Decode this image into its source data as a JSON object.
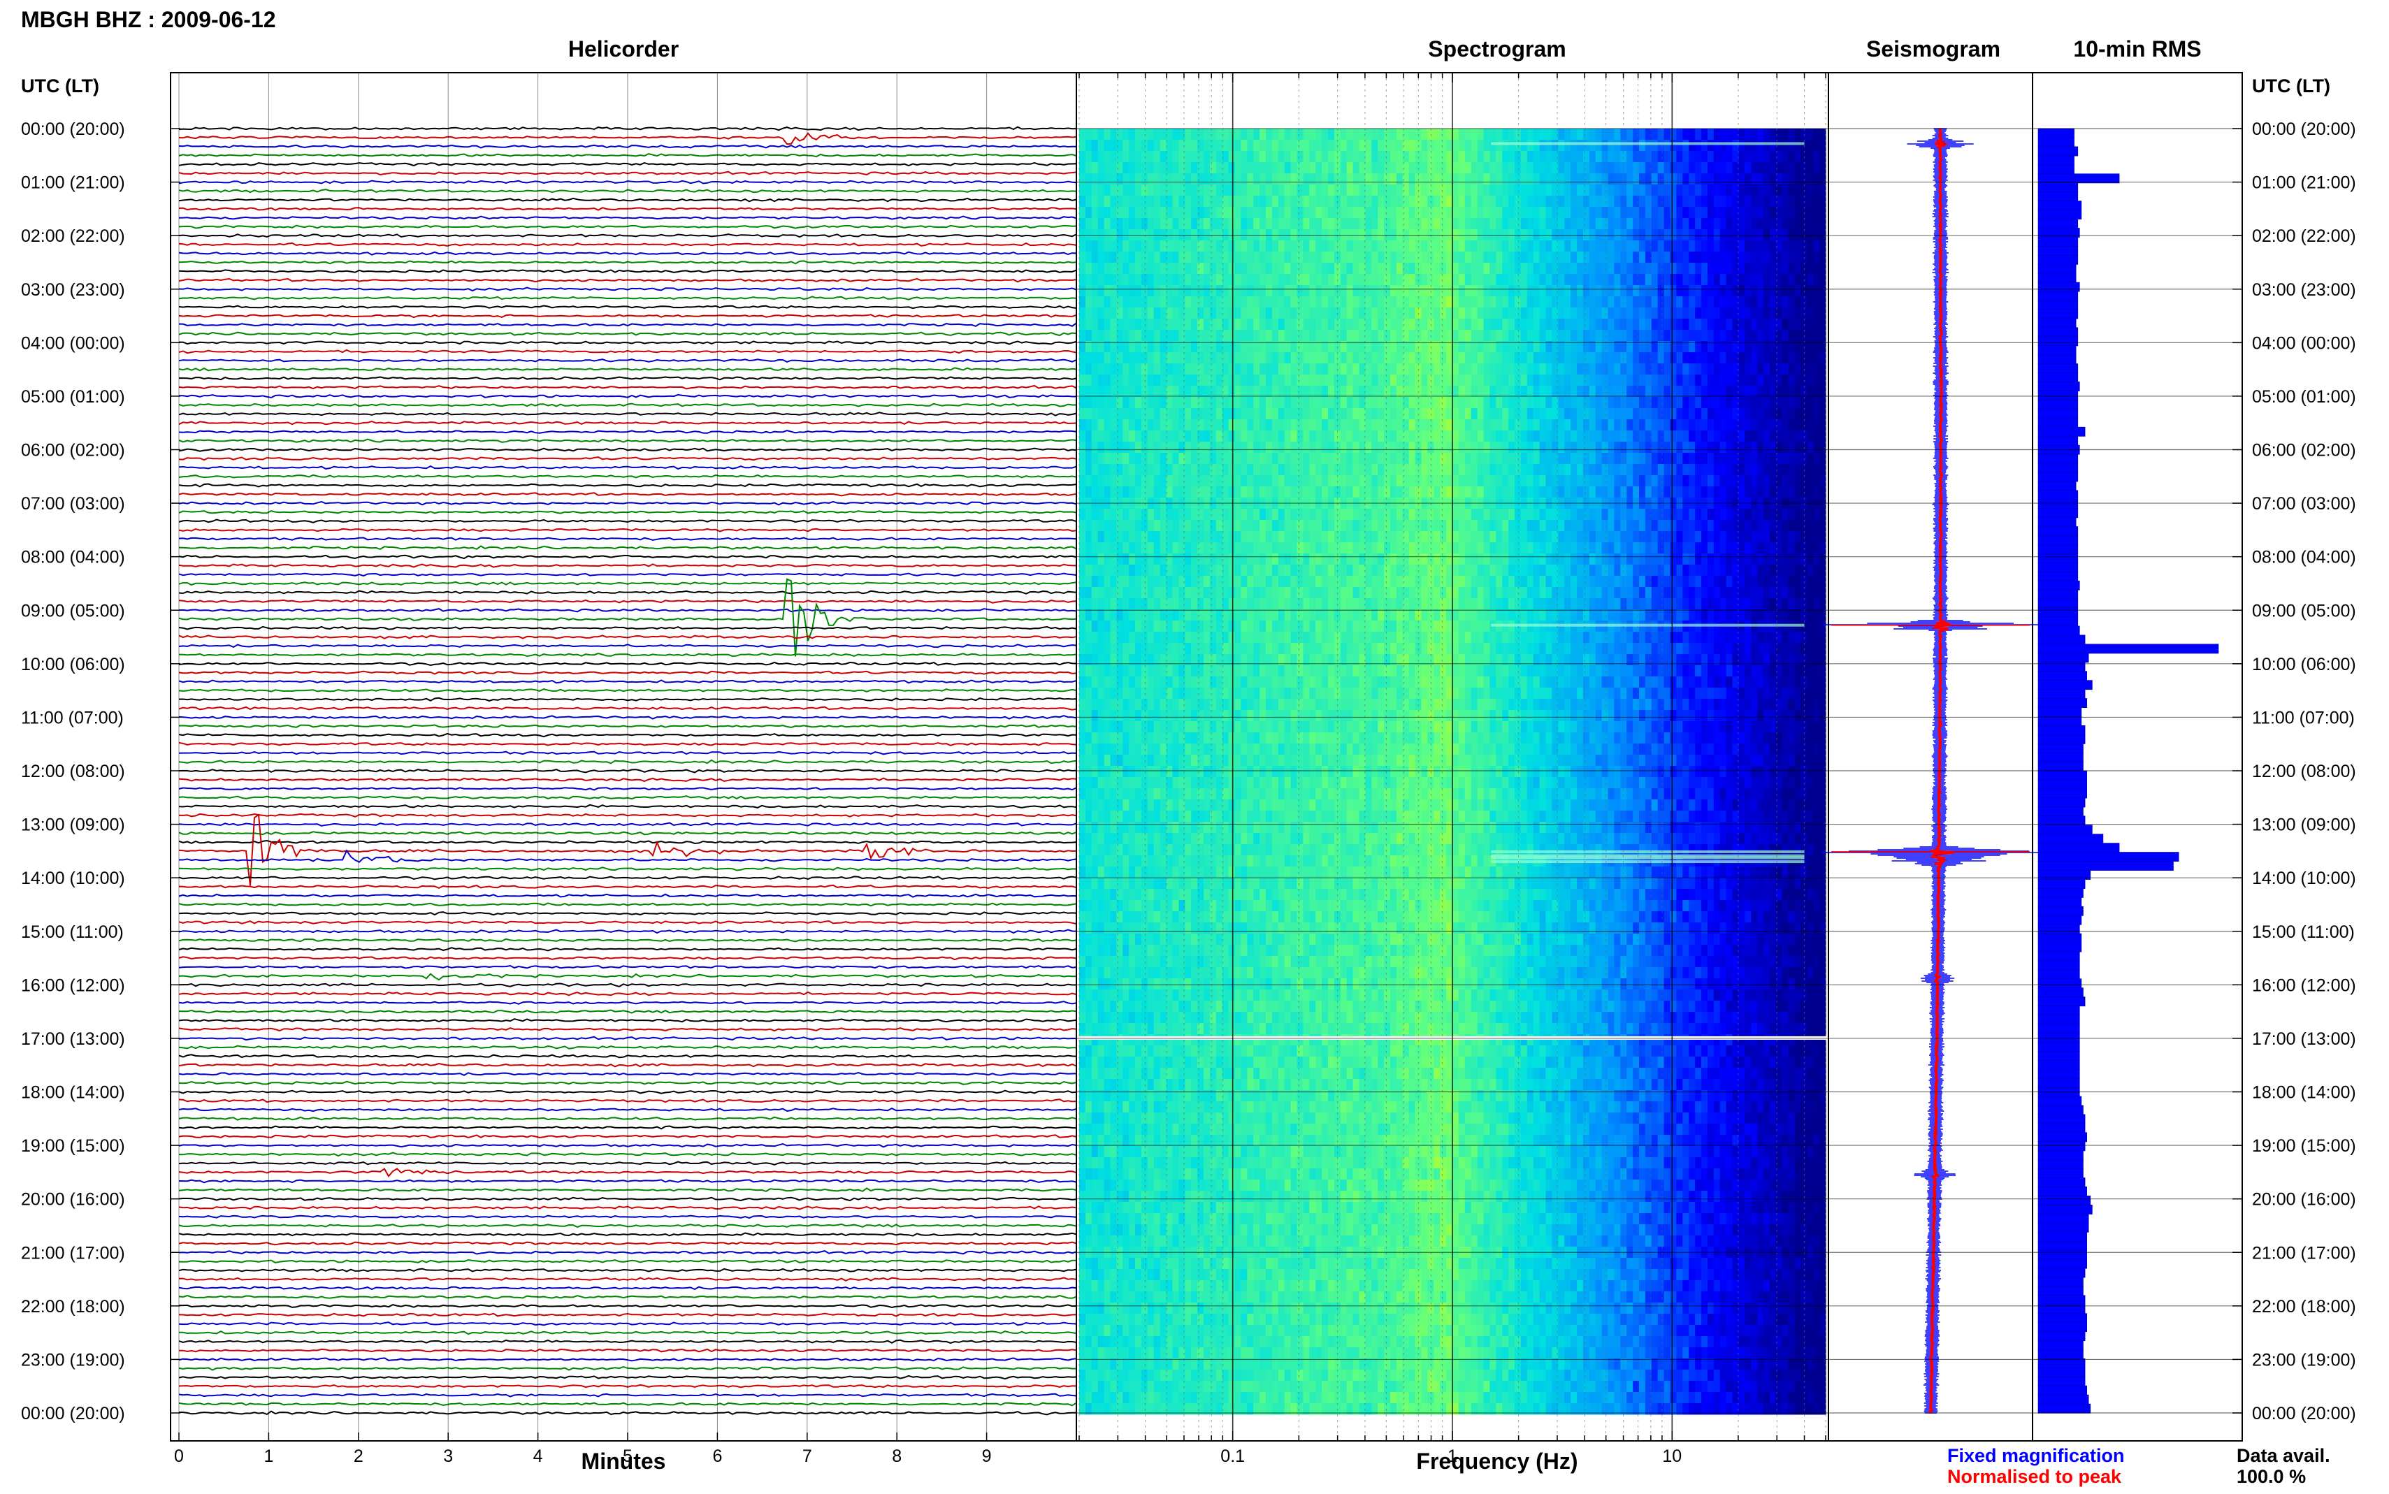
{
  "title": "MBGH BHZ : 2009-06-12",
  "panels": {
    "helicorder": "Helicorder",
    "spectrogram": "Spectrogram",
    "seismogram": "Seismogram",
    "rms": "10-min RMS"
  },
  "axis_header": "UTC (LT)",
  "time_labels": [
    "00:00 (20:00)",
    "01:00 (21:00)",
    "02:00 (22:00)",
    "03:00 (23:00)",
    "04:00 (00:00)",
    "05:00 (01:00)",
    "06:00 (02:00)",
    "07:00 (03:00)",
    "08:00 (04:00)",
    "09:00 (05:00)",
    "10:00 (06:00)",
    "11:00 (07:00)",
    "12:00 (08:00)",
    "13:00 (09:00)",
    "14:00 (10:00)",
    "15:00 (11:00)",
    "16:00 (12:00)",
    "17:00 (13:00)",
    "18:00 (14:00)",
    "19:00 (15:00)",
    "20:00 (16:00)",
    "21:00 (17:00)",
    "22:00 (18:00)",
    "23:00 (19:00)",
    "00:00 (20:00)"
  ],
  "helicorder_xlabel": "Minutes",
  "minute_ticks": [
    "0",
    "1",
    "2",
    "3",
    "4",
    "5",
    "6",
    "7",
    "8",
    "9"
  ],
  "spectrogram_xlabel": "Frequency (Hz)",
  "freq_ticks": [
    "0.1",
    "1",
    "10"
  ],
  "legend": {
    "fixed": "Fixed magnification",
    "normalised": "Normalised to peak",
    "fixed_color": "#0000ff",
    "normalised_color": "#ff0000"
  },
  "data_avail": {
    "label": "Data avail.",
    "value": "100.0 %"
  },
  "colors": {
    "trace_cycle": [
      "#000000",
      "#cc0000",
      "#0000cc",
      "#008800"
    ],
    "rms_bar": "#0000ff",
    "spectrogram_colormap": [
      "#000090",
      "#0000ff",
      "#0090ff",
      "#00e0e0",
      "#60ff80",
      "#e0ff00"
    ]
  },
  "chart_data": [
    {
      "type": "heatmap",
      "name": "helicorder",
      "title": "Helicorder",
      "xlabel": "Minutes",
      "xlim": [
        0,
        10
      ],
      "ylabel": "UTC (LT)",
      "hours": 24,
      "lines_per_hour": 6,
      "events": [
        {
          "time_utc": "00:10",
          "minute": 6.8,
          "amplitude": "moderate"
        },
        {
          "time_utc": "09:10",
          "minute": 6.8,
          "amplitude": "large"
        },
        {
          "time_utc": "13:30",
          "minute": 0.8,
          "amplitude": "large"
        },
        {
          "time_utc": "13:30",
          "minute": 5.3,
          "amplitude": "moderate"
        },
        {
          "time_utc": "13:30",
          "minute": 7.7,
          "amplitude": "moderate"
        },
        {
          "time_utc": "13:40",
          "minute": 1.9,
          "amplitude": "moderate"
        },
        {
          "time_utc": "15:50",
          "minute": 2.8,
          "amplitude": "small"
        },
        {
          "time_utc": "19:30",
          "minute": 2.3,
          "amplitude": "small"
        }
      ]
    },
    {
      "type": "heatmap",
      "name": "spectrogram",
      "title": "Spectrogram",
      "xlabel": "Frequency (Hz)",
      "xscale": "log",
      "xlim": [
        0.02,
        50
      ],
      "ylim_utc": [
        "00:00",
        "24:00"
      ]
    },
    {
      "type": "line",
      "name": "seismogram",
      "title": "Seismogram",
      "series": [
        {
          "name": "Fixed magnification"
        },
        {
          "name": "Normalised to peak"
        }
      ]
    },
    {
      "type": "bar",
      "name": "rms",
      "title": "10-min RMS",
      "orientation": "horizontal",
      "interval_minutes": 10,
      "values_relative": [
        0.2,
        0.2,
        0.22,
        0.2,
        0.2,
        0.45,
        0.22,
        0.22,
        0.24,
        0.24,
        0.22,
        0.23,
        0.22,
        0.22,
        0.22,
        0.21,
        0.21,
        0.23,
        0.22,
        0.22,
        0.22,
        0.21,
        0.22,
        0.22,
        0.21,
        0.21,
        0.22,
        0.22,
        0.23,
        0.22,
        0.22,
        0.22,
        0.22,
        0.26,
        0.22,
        0.23,
        0.22,
        0.22,
        0.22,
        0.21,
        0.22,
        0.22,
        0.22,
        0.21,
        0.22,
        0.22,
        0.22,
        0.22,
        0.22,
        0.22,
        0.23,
        0.22,
        0.22,
        0.22,
        0.22,
        0.23,
        0.26,
        1.0,
        0.28,
        0.26,
        0.27,
        0.3,
        0.26,
        0.27,
        0.24,
        0.24,
        0.26,
        0.26,
        0.25,
        0.25,
        0.25,
        0.27,
        0.27,
        0.27,
        0.26,
        0.25,
        0.26,
        0.3,
        0.36,
        0.45,
        0.78,
        0.75,
        0.29,
        0.26,
        0.25,
        0.24,
        0.25,
        0.24,
        0.23,
        0.24,
        0.24,
        0.23,
        0.23,
        0.23,
        0.24,
        0.25,
        0.26,
        0.23,
        0.23,
        0.23,
        0.23,
        0.23,
        0.23,
        0.23,
        0.23,
        0.23,
        0.23,
        0.24,
        0.25,
        0.26,
        0.26,
        0.27,
        0.26,
        0.25,
        0.25,
        0.25,
        0.26,
        0.27,
        0.29,
        0.3,
        0.28,
        0.28,
        0.27,
        0.27,
        0.27,
        0.27,
        0.26,
        0.25,
        0.25,
        0.26,
        0.26,
        0.27,
        0.27,
        0.26,
        0.25,
        0.25,
        0.26,
        0.26,
        0.26,
        0.27,
        0.28,
        0.29
      ]
    }
  ]
}
